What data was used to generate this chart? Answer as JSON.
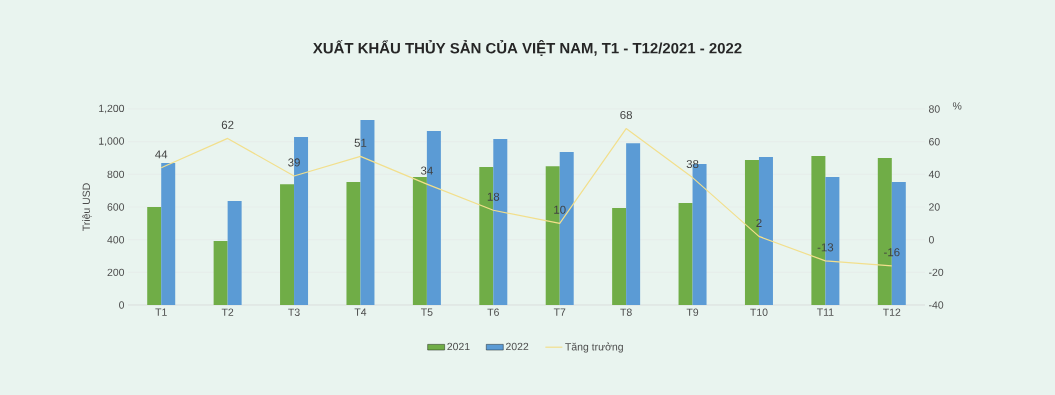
{
  "chart_data": {
    "type": "bar",
    "title": "XUẤT KHẨU THỦY SẢN CỦA VIỆT NAM, T1 - T12/2021 - 2022",
    "categories": [
      "T1",
      "T2",
      "T3",
      "T4",
      "T5",
      "T6",
      "T7",
      "T8",
      "T9",
      "T10",
      "T11",
      "T12"
    ],
    "series": [
      {
        "name": "2021",
        "color": "#70ad47",
        "values": [
          600,
          392,
          740,
          753,
          783,
          845,
          850,
          594,
          624,
          887,
          912,
          900
        ]
      },
      {
        "name": "2022",
        "color": "#5b9bd5",
        "values": [
          869,
          636,
          1028,
          1132,
          1065,
          1016,
          937,
          991,
          863,
          906,
          783,
          753
        ]
      },
      {
        "name": "Tăng trưởng",
        "type": "line",
        "axis": "y2",
        "color": "#f2df8c",
        "values": [
          44,
          62,
          39,
          51,
          34,
          18,
          10,
          68,
          38,
          2,
          -13,
          -16
        ],
        "value_labels": [
          "44",
          "62",
          "39",
          "51",
          "34",
          "18",
          "10",
          "68",
          "38",
          "2",
          "-13",
          "-16"
        ]
      }
    ],
    "ylabel": "Triệu USD",
    "y2label": "%",
    "ylim": [
      0,
      1200
    ],
    "yticks": [
      0,
      200,
      400,
      600,
      800,
      {
        "value": 1000,
        "label": "1,000"
      },
      {
        "value": 1200,
        "label": "1,200"
      }
    ],
    "y2lim": [
      -40,
      80
    ],
    "y2ticks": [
      -40,
      -20,
      0,
      20,
      40,
      60,
      80
    ],
    "grid": "y",
    "legend": "bottom"
  }
}
